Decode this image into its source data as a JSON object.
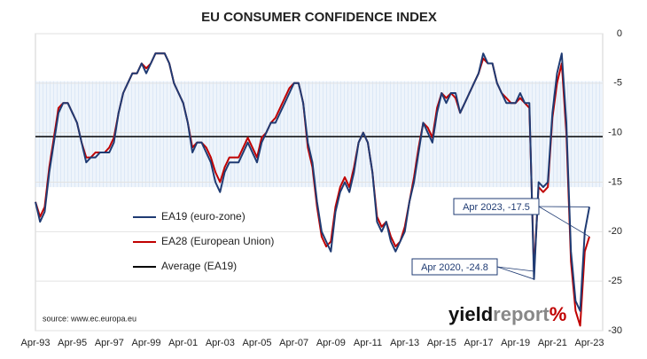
{
  "chart_data": {
    "type": "line",
    "title": "EU CONSUMER CONFIDENCE INDEX",
    "categories": [
      "Apr-93",
      null,
      null,
      null,
      null,
      null,
      null,
      null,
      "Apr-95",
      null,
      null,
      null,
      null,
      null,
      null,
      null,
      "Apr-97",
      null,
      null,
      null,
      null,
      null,
      null,
      null,
      "Apr-99",
      null,
      null,
      null,
      null,
      null,
      null,
      null,
      "Apr-01",
      null,
      null,
      null,
      null,
      null,
      null,
      null,
      "Apr-03",
      null,
      null,
      null,
      null,
      null,
      null,
      null,
      "Apr-05",
      null,
      null,
      null,
      null,
      null,
      null,
      null,
      "Apr-07",
      null,
      null,
      null,
      null,
      null,
      null,
      null,
      "Apr-09",
      null,
      null,
      null,
      null,
      null,
      null,
      null,
      "Apr-11",
      null,
      null,
      null,
      null,
      null,
      null,
      null,
      "Apr-13",
      null,
      null,
      null,
      null,
      null,
      null,
      null,
      "Apr-15",
      null,
      null,
      null,
      null,
      null,
      null,
      null,
      "Apr-17",
      null,
      null,
      null,
      null,
      null,
      null,
      null,
      "Apr-19",
      null,
      null,
      null,
      null,
      null,
      null,
      null,
      "Apr-21",
      null,
      null,
      null,
      null,
      null,
      null,
      null,
      "Apr-23"
    ],
    "series": [
      {
        "name": "EA19 (euro-zone)",
        "color": "#1f3b73",
        "values": [
          -17,
          -19,
          -18,
          -14,
          -11,
          -8,
          -7,
          -7,
          -8,
          -9,
          -11,
          -13,
          -12.5,
          -12.5,
          -12,
          -12,
          -12,
          -11,
          -8,
          -6,
          -5,
          -4,
          -4,
          -3,
          -4,
          -3,
          -2,
          -2,
          -2,
          -3,
          -5,
          -6,
          -7,
          -9,
          -12,
          -11,
          -11,
          -12,
          -13,
          -15,
          -16,
          -14,
          -13,
          -13,
          -13,
          -12,
          -11,
          -12,
          -13,
          -11,
          -10,
          -9,
          -9,
          -8,
          -7,
          -6,
          -5,
          -5,
          -7,
          -11,
          -13,
          -17,
          -20,
          -21,
          -22,
          -18,
          -16,
          -15,
          -16,
          -14,
          -11,
          -10,
          -11,
          -14,
          -19,
          -20,
          -19,
          -21,
          -22,
          -21,
          -20,
          -17,
          -15,
          -12,
          -9,
          -10,
          -11,
          -8,
          -6,
          -7,
          -6,
          -6,
          -8,
          -7,
          -6,
          -5,
          -4,
          -2,
          -3,
          -3,
          -5,
          -6,
          -7,
          -7,
          -7,
          -6,
          -7,
          -7,
          -24.8,
          -15,
          -15.5,
          -15,
          -8,
          -4,
          -2,
          -9,
          -22,
          -27,
          -28,
          -20,
          -17.5
        ]
      },
      {
        "name": "EA28 (European Union)",
        "color": "#c00000",
        "values": [
          -17,
          -18.5,
          -17.5,
          -13.5,
          -10.5,
          -7.5,
          -7,
          -7,
          -8,
          -9,
          -11,
          -12.5,
          -12.5,
          -12,
          -12,
          -12,
          -11.5,
          -10.5,
          -8,
          -6,
          -5,
          -4,
          -4,
          -3,
          -3.5,
          -3,
          -2,
          -2,
          -2,
          -3,
          -5,
          -6,
          -7,
          -9,
          -11.5,
          -11,
          -11,
          -11.5,
          -12.5,
          -14,
          -15,
          -13.5,
          -12.5,
          -12.5,
          -12.5,
          -11.5,
          -10.5,
          -11.5,
          -12.5,
          -10.5,
          -10,
          -9,
          -8.5,
          -7.5,
          -6.5,
          -5.5,
          -5,
          -5,
          -7,
          -11.5,
          -13.5,
          -17.5,
          -20.5,
          -21.5,
          -21,
          -17.5,
          -15.5,
          -14.5,
          -15.5,
          -13.5,
          -11,
          -10,
          -11,
          -14,
          -18.5,
          -19.5,
          -19,
          -20.5,
          -21.5,
          -21,
          -19.5,
          -17,
          -14.5,
          -11.5,
          -9,
          -9.5,
          -10.5,
          -7.5,
          -6,
          -6.5,
          -6,
          -6.5,
          -8,
          -7,
          -6,
          -5,
          -4,
          -2.5,
          -3,
          -3,
          -5,
          -6,
          -6.5,
          -7,
          -7,
          -6.5,
          -7,
          -7.5,
          -24,
          -15.5,
          -16,
          -15.5,
          -8.5,
          -5,
          -3,
          -10,
          -23,
          -28,
          -29.5,
          -22,
          -20.5
        ]
      }
    ],
    "average": {
      "name": "Average (EA19)",
      "value": -10.4,
      "color": "#000000"
    },
    "shaded_band": [
      -15.5,
      -4.8
    ],
    "annotations": [
      {
        "label": "Apr 2023, -17.5",
        "value": -17.5
      },
      {
        "label": "Apr 2020, -24.8",
        "value": -24.8
      }
    ],
    "source": "source: www.ec.europa.eu",
    "logo": [
      "yield",
      "report",
      "%"
    ],
    "ylim": [
      -30,
      0
    ],
    "yticks": [
      0,
      -5,
      -10,
      -15,
      -20,
      -25,
      -30
    ],
    "grid": true
  }
}
